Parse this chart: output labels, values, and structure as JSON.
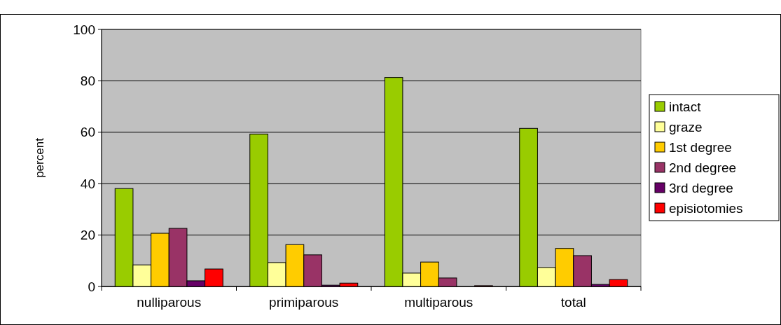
{
  "chart_data": {
    "type": "bar",
    "ylabel": "percent",
    "categories": [
      "nulliparous",
      "primiparous",
      "multiparous",
      "total"
    ],
    "series": [
      {
        "name": "intact",
        "color": "#99cc00",
        "values": [
          38.1,
          59.3,
          81.3,
          61.5
        ]
      },
      {
        "name": "graze",
        "color": "#ffff99",
        "values": [
          8.4,
          9.3,
          5.2,
          7.4
        ]
      },
      {
        "name": "1st degree",
        "color": "#ffcc00",
        "values": [
          20.7,
          16.3,
          9.5,
          14.8
        ]
      },
      {
        "name": "2nd degree",
        "color": "#993366",
        "values": [
          22.6,
          12.3,
          3.3,
          12
        ]
      },
      {
        "name": "3rd degree",
        "color": "#660066",
        "values": [
          2.2,
          0.5,
          0,
          0.8
        ]
      },
      {
        "name": "episiotomies",
        "color": "#ff0000",
        "values": [
          6.8,
          1.3,
          0.3,
          2.7
        ]
      }
    ],
    "ylim": [
      0,
      100
    ],
    "yticks": [
      0,
      20,
      40,
      60,
      80,
      100
    ],
    "grid": "y",
    "legend": "right"
  }
}
